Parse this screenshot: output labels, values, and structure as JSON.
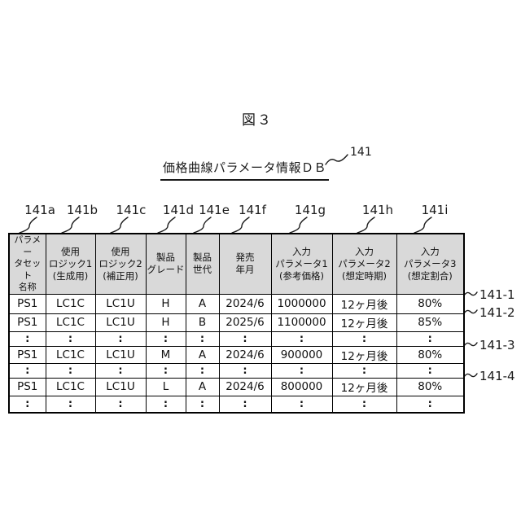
{
  "figure_label": "図３",
  "db_title": {
    "text": "価格曲線パラメータ情報ＤＢ",
    "ref": "141"
  },
  "column_refs": [
    "141a",
    "141b",
    "141c",
    "141d",
    "141e",
    "141f",
    "141g",
    "141h",
    "141i"
  ],
  "row_refs": [
    "141-1",
    "141-2",
    "141-3",
    "141-4"
  ],
  "table": {
    "headers": [
      "パラメー\nタセット\n名称",
      "使用\nロジック1\n(生成用)",
      "使用\nロジック2\n(補正用)",
      "製品\nグレード",
      "製品\n世代",
      "発売\n年月",
      "入力\nパラメータ1\n(参考価格)",
      "入力\nパラメータ2\n(想定時期)",
      "入力\nパラメータ3\n(想定割合)"
    ],
    "rows": [
      [
        "PS1",
        "LC1C",
        "LC1U",
        "H",
        "A",
        "2024/6",
        "1000000",
        "12ヶ月後",
        "80%"
      ],
      [
        "PS1",
        "LC1C",
        "LC1U",
        "H",
        "B",
        "2025/6",
        "1100000",
        "12ヶ月後",
        "85%"
      ],
      [
        ":",
        ":",
        ":",
        ":",
        ":",
        ":",
        ":",
        ":",
        ":"
      ],
      [
        "PS1",
        "LC1C",
        "LC1U",
        "M",
        "A",
        "2024/6",
        "900000",
        "12ヶ月後",
        "80%"
      ],
      [
        ":",
        ":",
        ":",
        ":",
        ":",
        ":",
        ":",
        ":",
        ":"
      ],
      [
        "PS1",
        "LC1C",
        "LC1U",
        "L",
        "A",
        "2024/6",
        "800000",
        "12ヶ月後",
        "80%"
      ],
      [
        ":",
        ":",
        ":",
        ":",
        ":",
        ":",
        ":",
        ":",
        ":"
      ]
    ]
  },
  "colors": {
    "header_bg": "#d9d9d9",
    "border": "#000000",
    "background": "#ffffff",
    "text": "#1a1a1a"
  }
}
